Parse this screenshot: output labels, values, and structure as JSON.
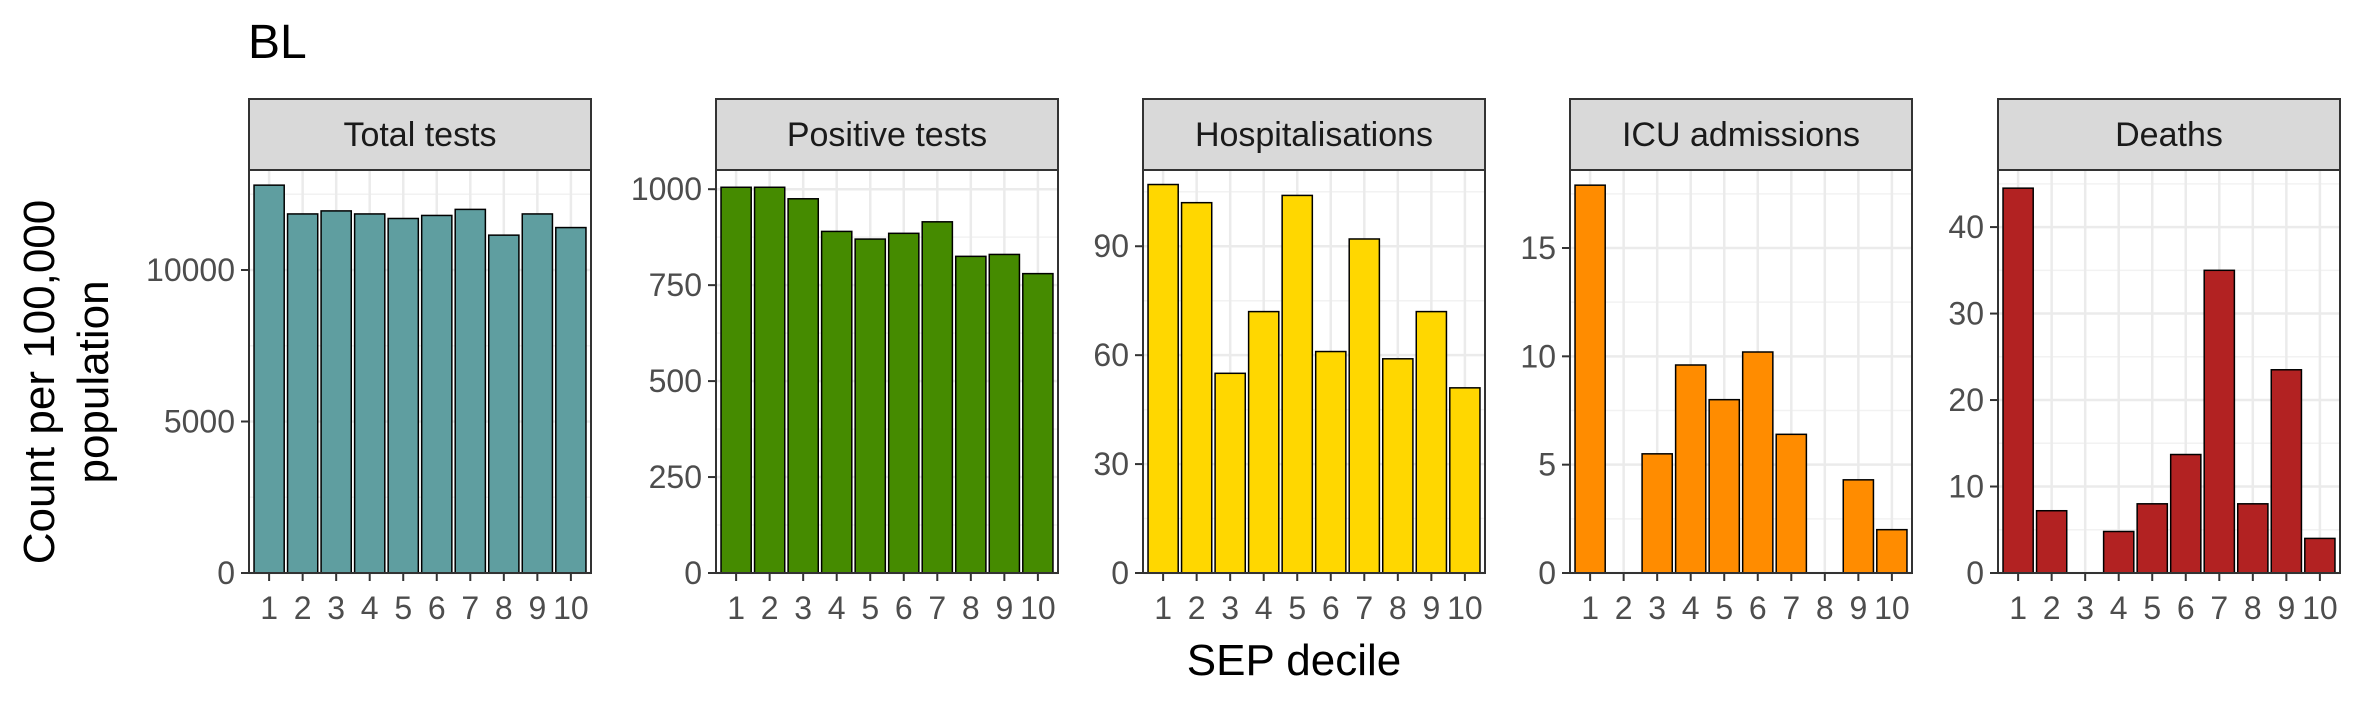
{
  "chart_data": {
    "type": "bar",
    "title": "BL",
    "xlabel": "SEP decile",
    "ylabel_lines": [
      "Count per 100,000",
      "population"
    ],
    "categories": [
      "1",
      "2",
      "3",
      "4",
      "5",
      "6",
      "7",
      "8",
      "9",
      "10"
    ],
    "grid": true,
    "legend": "none",
    "panels": [
      {
        "name": "Total tests",
        "color": "#5F9EA0",
        "ylim": [
          0,
          13300
        ],
        "yticks": [
          0,
          5000,
          10000
        ],
        "values": [
          12800,
          11850,
          11950,
          11850,
          11700,
          11800,
          12000,
          11150,
          11850,
          11400
        ]
      },
      {
        "name": "Positive tests",
        "color": "#458B00",
        "ylim": [
          0,
          1050
        ],
        "yticks": [
          0,
          250,
          500,
          750,
          1000
        ],
        "values": [
          1005,
          1005,
          975,
          890,
          870,
          885,
          915,
          825,
          830,
          780
        ]
      },
      {
        "name": "Hospitalisations",
        "color": "#FFD700",
        "ylim": [
          0,
          111
        ],
        "yticks": [
          0,
          30,
          60,
          90
        ],
        "values": [
          107,
          102,
          55,
          72,
          104,
          61,
          92,
          59,
          72,
          51
        ]
      },
      {
        "name": "ICU admissions",
        "color": "#FF8C00",
        "ylim": [
          0,
          18.6
        ],
        "yticks": [
          0,
          5,
          10,
          15
        ],
        "values": [
          17.9,
          0,
          5.5,
          9.6,
          8.0,
          10.2,
          6.4,
          0,
          4.3,
          2.0
        ]
      },
      {
        "name": "Deaths",
        "color": "#B22222",
        "ylim": [
          0,
          46.6
        ],
        "yticks": [
          0,
          10,
          20,
          30,
          40
        ],
        "values": [
          44.5,
          7.2,
          0,
          4.8,
          8.0,
          13.7,
          35.0,
          8.0,
          23.5,
          4.0
        ]
      }
    ]
  }
}
